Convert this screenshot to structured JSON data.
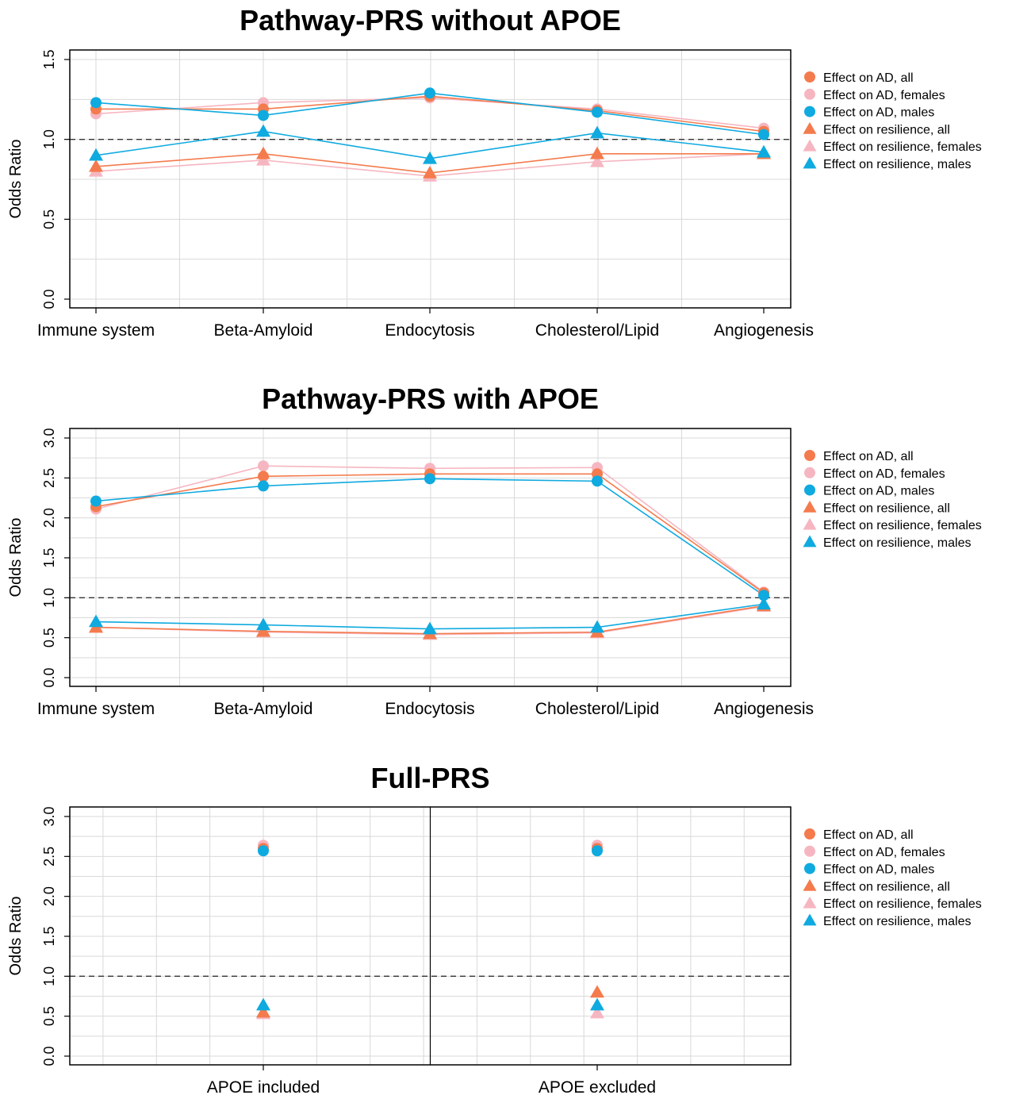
{
  "colors": {
    "all": "#f47b4d",
    "females": "#f6b6c1",
    "males": "#0faadf"
  },
  "legend": [
    {
      "label": "Effect on AD, all",
      "shape": "circle",
      "color": "all"
    },
    {
      "label": "Effect on AD, females",
      "shape": "circle",
      "color": "females"
    },
    {
      "label": "Effect on AD, males",
      "shape": "circle",
      "color": "males"
    },
    {
      "label": "Effect on resilience, all",
      "shape": "triangle",
      "color": "all"
    },
    {
      "label": "Effect on resilience, females",
      "shape": "triangle",
      "color": "females"
    },
    {
      "label": "Effect on resilience, males",
      "shape": "triangle",
      "color": "males"
    }
  ],
  "chart_data": [
    {
      "type": "line",
      "title": "Pathway-PRS without APOE",
      "ylabel": "Odds Ratio",
      "ylim": [
        0,
        1.5
      ],
      "yticks": [
        "0.0",
        "0.5",
        "1.0",
        "1.5"
      ],
      "reference_line": 1.0,
      "grid": true,
      "legend_position": "right",
      "categories": [
        "Immune system",
        "Beta-Amyloid",
        "Endocytosis",
        "Cholesterol/Lipid",
        "Angiogenesis"
      ],
      "series": [
        {
          "name": "Effect on AD, all",
          "shape": "circle",
          "color": "all",
          "values": [
            1.19,
            1.19,
            1.27,
            1.18,
            1.05
          ]
        },
        {
          "name": "Effect on AD, females",
          "shape": "circle",
          "color": "females",
          "values": [
            1.16,
            1.23,
            1.26,
            1.19,
            1.07
          ]
        },
        {
          "name": "Effect on AD, males",
          "shape": "circle",
          "color": "males",
          "values": [
            1.23,
            1.15,
            1.29,
            1.17,
            1.03
          ]
        },
        {
          "name": "Effect on resilience, all",
          "shape": "triangle",
          "color": "all",
          "values": [
            0.83,
            0.91,
            0.79,
            0.91,
            0.91
          ]
        },
        {
          "name": "Effect on resilience, females",
          "shape": "triangle",
          "color": "females",
          "values": [
            0.8,
            0.87,
            0.77,
            0.86,
            0.91
          ]
        },
        {
          "name": "Effect on resilience, males",
          "shape": "triangle",
          "color": "males",
          "values": [
            0.9,
            1.05,
            0.88,
            1.04,
            0.92
          ]
        }
      ]
    },
    {
      "type": "line",
      "title": "Pathway-PRS with APOE",
      "ylabel": "Odds Ratio",
      "ylim": [
        0,
        3.0
      ],
      "yticks": [
        "0.0",
        "0.5",
        "1.0",
        "1.5",
        "2.0",
        "2.5",
        "3.0"
      ],
      "reference_line": 1.0,
      "grid": true,
      "legend_position": "right",
      "categories": [
        "Immune system",
        "Beta-Amyloid",
        "Endocytosis",
        "Cholesterol/Lipid",
        "Angiogenesis"
      ],
      "series": [
        {
          "name": "Effect on AD, all",
          "shape": "circle",
          "color": "all",
          "values": [
            2.14,
            2.52,
            2.55,
            2.55,
            1.06
          ]
        },
        {
          "name": "Effect on AD, females",
          "shape": "circle",
          "color": "females",
          "values": [
            2.11,
            2.65,
            2.62,
            2.63,
            1.07
          ]
        },
        {
          "name": "Effect on AD, males",
          "shape": "circle",
          "color": "males",
          "values": [
            2.21,
            2.4,
            2.49,
            2.46,
            1.03
          ]
        },
        {
          "name": "Effect on resilience, all",
          "shape": "triangle",
          "color": "all",
          "values": [
            0.63,
            0.58,
            0.55,
            0.57,
            0.9
          ]
        },
        {
          "name": "Effect on resilience, females",
          "shape": "triangle",
          "color": "females",
          "values": [
            0.63,
            0.57,
            0.54,
            0.56,
            0.89
          ]
        },
        {
          "name": "Effect on resilience, males",
          "shape": "triangle",
          "color": "males",
          "values": [
            0.7,
            0.66,
            0.61,
            0.63,
            0.92
          ]
        }
      ]
    },
    {
      "type": "scatter",
      "title": "Full-PRS",
      "ylabel": "Odds Ratio",
      "ylim": [
        0,
        3.0
      ],
      "yticks": [
        "0.0",
        "0.5",
        "1.0",
        "1.5",
        "2.0",
        "2.5",
        "3.0"
      ],
      "reference_line": 1.0,
      "grid": true,
      "legend_position": "right",
      "categories": [
        "APOE included",
        "APOE excluded"
      ],
      "series": [
        {
          "name": "Effect on AD, all",
          "shape": "circle",
          "color": "all",
          "values": [
            2.6,
            2.6
          ]
        },
        {
          "name": "Effect on AD, females",
          "shape": "circle",
          "color": "females",
          "values": [
            2.64,
            2.64
          ]
        },
        {
          "name": "Effect on AD, males",
          "shape": "circle",
          "color": "males",
          "values": [
            2.57,
            2.57
          ]
        },
        {
          "name": "Effect on resilience, all",
          "shape": "triangle",
          "color": "all",
          "values": [
            0.55,
            0.8
          ]
        },
        {
          "name": "Effect on resilience, females",
          "shape": "triangle",
          "color": "females",
          "values": [
            0.53,
            0.54
          ]
        },
        {
          "name": "Effect on resilience, males",
          "shape": "triangle",
          "color": "males",
          "values": [
            0.64,
            0.64
          ]
        }
      ]
    }
  ]
}
